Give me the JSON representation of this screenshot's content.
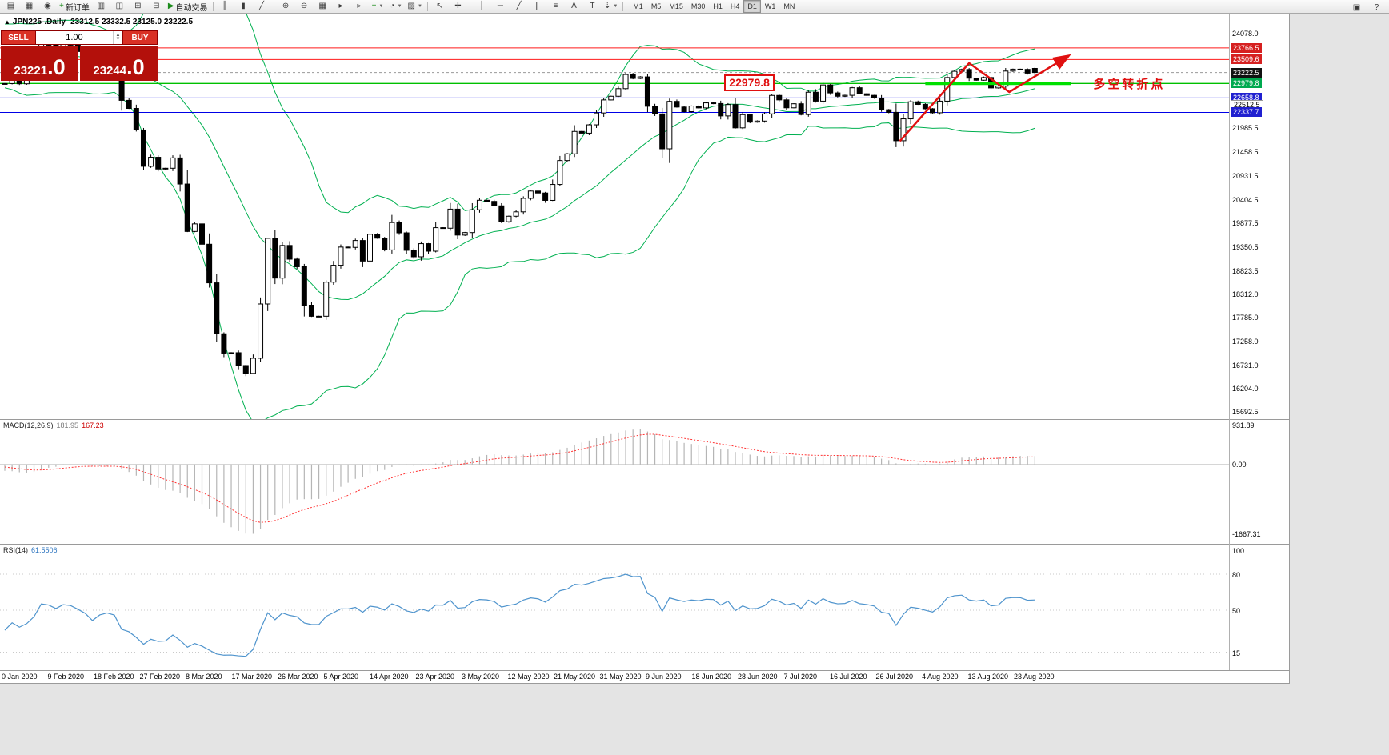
{
  "chart": {
    "symbol_title": "JPN225-.Daily",
    "ohlc_text": "23312.5 23332.5 23125.0 23222.5"
  },
  "trade_panel": {
    "sell_label": "SELL",
    "buy_label": "BUY",
    "volume": "1.00",
    "sell_price_main": "23221",
    "sell_price_frac": ".0",
    "buy_price_main": "23244",
    "buy_price_frac": ".0"
  },
  "indicators": {
    "macd_label": "MACD(12,26,9)",
    "macd_main": "181.95",
    "macd_signal": "167.23",
    "rsi_label": "RSI(14)",
    "rsi_value": "61.5506"
  },
  "toolbar": {
    "items": [
      {
        "name": "new-chart",
        "glyph": "▤"
      },
      {
        "name": "profiles",
        "glyph": "▦"
      },
      {
        "name": "chart-refresh",
        "glyph": "◉"
      },
      {
        "name": "new-order",
        "glyph": "+",
        "glyph_color": "#1c8c1c",
        "label": "新订单"
      },
      {
        "name": "market-watch",
        "glyph": "▥"
      },
      {
        "name": "data-window",
        "glyph": "◫"
      },
      {
        "name": "navigator",
        "glyph": "⊞"
      },
      {
        "name": "terminal",
        "glyph": "⊟"
      },
      {
        "name": "autotrading",
        "glyph": "▶",
        "glyph_color": "#1c8c1c",
        "label": "自动交易"
      },
      {
        "sep": true
      },
      {
        "name": "bars-chart",
        "glyph": "║"
      },
      {
        "name": "candles-chart",
        "glyph": "▮"
      },
      {
        "name": "line-chart",
        "glyph": "╱"
      },
      {
        "sep": true
      },
      {
        "name": "zoom-in",
        "glyph": "⊕"
      },
      {
        "name": "zoom-out",
        "glyph": "⊖"
      },
      {
        "name": "tile-windows",
        "glyph": "▦"
      },
      {
        "name": "auto-scroll",
        "glyph": "▸"
      },
      {
        "name": "chart-shift",
        "glyph": "▹"
      },
      {
        "name": "indicators-add",
        "glyph": "+",
        "glyph_color": "#1c8c1c",
        "dropdown": true
      },
      {
        "name": "periods",
        "glyph": "◔",
        "dropdown": true
      },
      {
        "name": "templates",
        "glyph": "▨",
        "dropdown": true
      },
      {
        "sep": true
      },
      {
        "name": "cursor",
        "glyph": "↖"
      },
      {
        "name": "crosshair",
        "glyph": "✛"
      },
      {
        "sep": true
      },
      {
        "name": "vertical-line",
        "glyph": "│"
      },
      {
        "name": "horizontal-line",
        "glyph": "─"
      },
      {
        "name": "trendline",
        "glyph": "╱"
      },
      {
        "name": "channel",
        "glyph": "∥"
      },
      {
        "name": "fibonacci",
        "glyph": "≡"
      },
      {
        "name": "text",
        "glyph": "A"
      },
      {
        "name": "text-label",
        "glyph": "T"
      },
      {
        "name": "arrows-tool",
        "glyph": "⇣",
        "dropdown": true
      },
      {
        "sep": true
      }
    ],
    "timeframes": [
      "M1",
      "M5",
      "M15",
      "M30",
      "H1",
      "H4",
      "D1",
      "W1",
      "MN"
    ],
    "active_timeframe": "D1",
    "right_items": [
      {
        "name": "docking",
        "glyph": "▣"
      },
      {
        "name": "help",
        "glyph": "?"
      }
    ]
  },
  "chart_data": {
    "type": "candlestick",
    "symbol": "JPN225-.Daily",
    "timeframe": "Daily",
    "ohlc_display": {
      "open": 23312.5,
      "high": 23332.5,
      "low": 23125.0,
      "close": 23222.5
    },
    "price_axis": {
      "min": 15610,
      "max": 24190,
      "plain_ticks": [
        "24078.0",
        "21985.5",
        "21458.5",
        "20931.5",
        "20404.5",
        "19877.5",
        "19350.5",
        "18823.5",
        "18312.0",
        "17785.0",
        "17258.0",
        "16731.0",
        "16204.0",
        "15692.5"
      ]
    },
    "price_tags": [
      {
        "text": "23766.5",
        "type": "resistance-line",
        "bg": "#d62020",
        "line": "#ff1a1a",
        "lw": 1
      },
      {
        "text": "23509.6",
        "type": "resistance-line",
        "bg": "#d62020",
        "line": "#ff1a1a",
        "lw": 1
      },
      {
        "text": "23222.5",
        "type": "bid-price",
        "bg": "#111111",
        "line": "#999999",
        "lw": 1,
        "dash": true
      },
      {
        "text": "22979.8",
        "type": "pivot-line",
        "bg": "#00a94f",
        "line": "#00c000",
        "lw": 1.4
      },
      {
        "text": "22658.8",
        "type": "support-line",
        "bg": "#2020d0",
        "line": "#0000e6",
        "lw": 1
      },
      {
        "text": "22512.5",
        "type": "level",
        "plain": true
      },
      {
        "text": "22337.7",
        "type": "support-line",
        "bg": "#2020d0",
        "line": "#0000e6",
        "lw": 1
      }
    ],
    "bollinger": {
      "period": 20,
      "deviation": 2,
      "color": "#00b050"
    },
    "pre_closes": [
      23925,
      23838,
      23656,
      23587,
      23594,
      23706,
      23217,
      23397,
      23205,
      23576,
      23740,
      23850,
      23740,
      23913,
      24041,
      23917,
      24023,
      24083,
      23864,
      23344,
      23031,
      22977
    ],
    "closes": [
      22977,
      23205,
      22972,
      23085,
      23320,
      23874,
      23828,
      23686,
      23861,
      23828,
      23687,
      23523,
      23194,
      23401,
      23479,
      23387,
      22605,
      22426,
      21948,
      21143,
      21344,
      21083,
      21100,
      21329,
      20750,
      19699,
      19867,
      19416,
      18560,
      17431,
      17002,
      17011,
      16727,
      16553,
      16888,
      18092,
      19547,
      18665,
      19389,
      19085,
      18917,
      18065,
      17819,
      17820,
      18576,
      18950,
      19353,
      19346,
      19499,
      19043,
      19638,
      19550,
      19290,
      19897,
      19669,
      19281,
      19138,
      19429,
      19262,
      19783,
      19771,
      20194,
      19619,
      19675,
      20179,
      20391,
      20366,
      20267,
      19915,
      20037,
      20134,
      20433,
      20595,
      20552,
      20388,
      20741,
      21271,
      21419,
      21916,
      21878,
      22062,
      22326,
      22614,
      22696,
      22864,
      23178,
      23091,
      23125,
      22473,
      22305,
      21531,
      22582,
      22456,
      22355,
      22479,
      22437,
      22549,
      22534,
      22260,
      22512,
      21995,
      22288,
      22122,
      22146,
      22306,
      22714,
      22615,
      22439,
      22529,
      22291,
      22785,
      22587,
      22946,
      22770,
      22696,
      22717,
      22884,
      22751,
      22716,
      22657,
      22397,
      22339,
      21710,
      22195,
      22573,
      22515,
      22418,
      22330,
      22587,
      23111,
      23249,
      23289,
      23096,
      23051,
      23111,
      22880,
      22920,
      23254,
      23296,
      23291,
      23208,
      23222.5
    ],
    "last_candle": {
      "o": 23312.5,
      "h": 23332.5,
      "l": 23125.0,
      "c": 23222.5
    },
    "macd": {
      "label": "MACD(12,26,9)",
      "fast": 12,
      "slow": 26,
      "signal": 9,
      "value_main": 181.95,
      "value_signal": 167.23,
      "axis": {
        "min": -1667.31,
        "max": 931.89
      },
      "ticks": [
        "931.89",
        "0.00",
        "-1667.31"
      ],
      "histogram_color": "#b5b5b5",
      "signal_color": "#ff3333"
    },
    "rsi": {
      "label": "RSI(14)",
      "period": 14,
      "value": 61.5506,
      "axis": {
        "min": 0,
        "max": 100
      },
      "ticks": [
        "100",
        "80",
        "50",
        "15"
      ],
      "line_color": "#4f94cd"
    },
    "dates": [
      "0 Jan 2020",
      "9 Feb 2020",
      "18 Feb 2020",
      "27 Feb 2020",
      "8 Mar 2020",
      "17 Mar 2020",
      "26 Mar 2020",
      "5 Apr 2020",
      "14 Apr 2020",
      "23 Apr 2020",
      "3 May 2020",
      "12 May 2020",
      "21 May 2020",
      "31 May 2020",
      "9 Jun 2020",
      "18 Jun 2020",
      "28 Jun 2020",
      "7 Jul 2020",
      "16 Jul 2020",
      "26 Jul 2020",
      "4 Aug 2020",
      "13 Aug 2020",
      "23 Aug 2020"
    ],
    "annotations": {
      "price_box": {
        "text": "22979.8",
        "i": 98.5,
        "p": 22985
      },
      "bold_level": {
        "p": 22979.8,
        "i1": 126,
        "i2": 146,
        "color": "#00e000"
      },
      "trend_arrow": {
        "color": "#e01010",
        "points": [
          {
            "i": 122.5,
            "p": 21700
          },
          {
            "i": 132,
            "p": 23430
          },
          {
            "i": 137.5,
            "p": 22790
          },
          {
            "i": 145.5,
            "p": 23580
          }
        ]
      },
      "cjk_label": {
        "text": "多空转折点",
        "i": 149,
        "p": 23010,
        "color": "#e01010"
      }
    }
  }
}
